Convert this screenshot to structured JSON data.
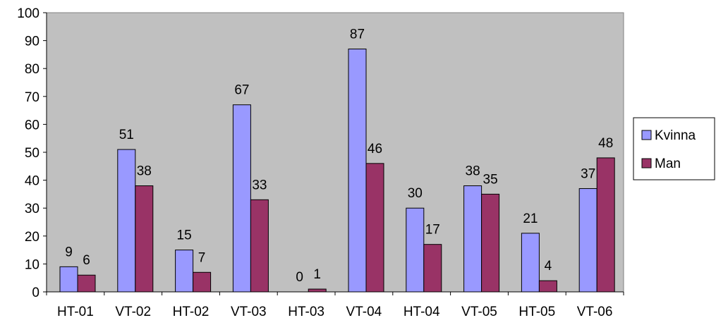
{
  "chart_data": {
    "type": "bar",
    "categories": [
      "HT-01",
      "VT-02",
      "HT-02",
      "VT-03",
      "HT-03",
      "VT-04",
      "HT-04",
      "VT-05",
      "HT-05",
      "VT-06"
    ],
    "series": [
      {
        "name": "Kvinna",
        "values": [
          9,
          51,
          15,
          67,
          0,
          87,
          30,
          38,
          21,
          37
        ],
        "color": "#9999FF"
      },
      {
        "name": "Man",
        "values": [
          6,
          38,
          7,
          33,
          1,
          46,
          17,
          35,
          4,
          48
        ],
        "color": "#993366"
      }
    ],
    "ylim": [
      0,
      100
    ],
    "yticks": [
      0,
      10,
      20,
      30,
      40,
      50,
      60,
      70,
      80,
      90,
      100
    ],
    "plot_background": "#C0C0C0",
    "data_labels": true,
    "grid": false,
    "legend_position": "right"
  }
}
